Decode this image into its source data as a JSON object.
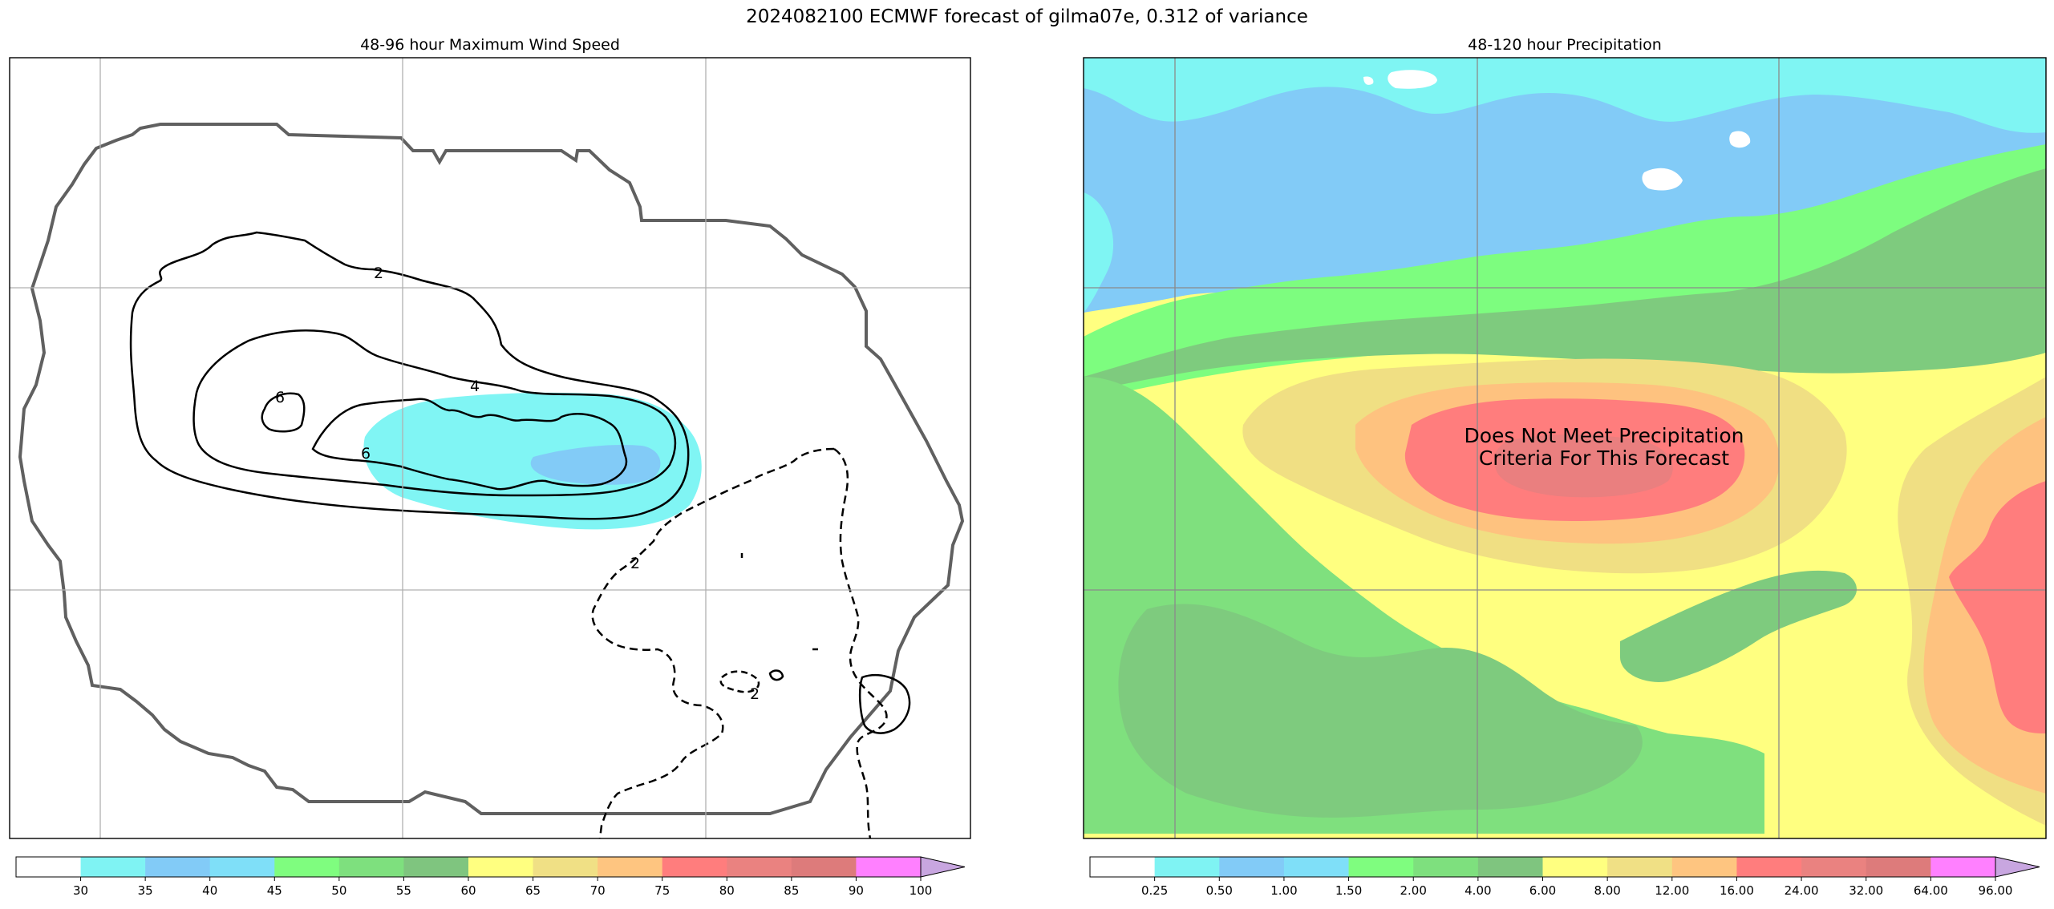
{
  "title": "2024082100 ECMWF forecast of gilma07e, 0.312 of variance",
  "panels": {
    "wind": {
      "title": "48-96 hour Maximum Wind Speed",
      "contour_labels": [
        "2",
        "4",
        "6",
        "6",
        "2",
        "2"
      ],
      "colorbar": {
        "ticks": [
          "30",
          "35",
          "40",
          "45",
          "50",
          "55",
          "60",
          "65",
          "70",
          "75",
          "80",
          "85",
          "90",
          "100"
        ],
        "colors": [
          "#ffffff",
          "#7ff3f3",
          "#82cbf7",
          "#7fdff8",
          "#7ffd7f",
          "#7ee07e",
          "#7fc57f",
          "#ffff80",
          "#f0e085",
          "#fec580",
          "#ff7d7d",
          "#ea8280",
          "#dd7b7b",
          "#ff80ff",
          "#c8a6e0"
        ]
      }
    },
    "precip": {
      "title": "48-120 hour Precipitation",
      "message": [
        "Does Not Meet Precipitation",
        "Criteria For This Forecast"
      ],
      "colorbar": {
        "ticks": [
          "0.25",
          "0.50",
          "1.00",
          "1.50",
          "2.00",
          "4.00",
          "6.00",
          "8.00",
          "12.00",
          "16.00",
          "24.00",
          "32.00",
          "64.00",
          "96.00"
        ],
        "colors": [
          "#ffffff",
          "#7ff3f3",
          "#82cbf7",
          "#7fdff8",
          "#7ffd7f",
          "#7ee07e",
          "#7fc57f",
          "#ffff80",
          "#f0e085",
          "#fec580",
          "#ff7d7d",
          "#ea8280",
          "#dd7b7b",
          "#ff80ff",
          "#c8a6e0"
        ]
      }
    }
  }
}
